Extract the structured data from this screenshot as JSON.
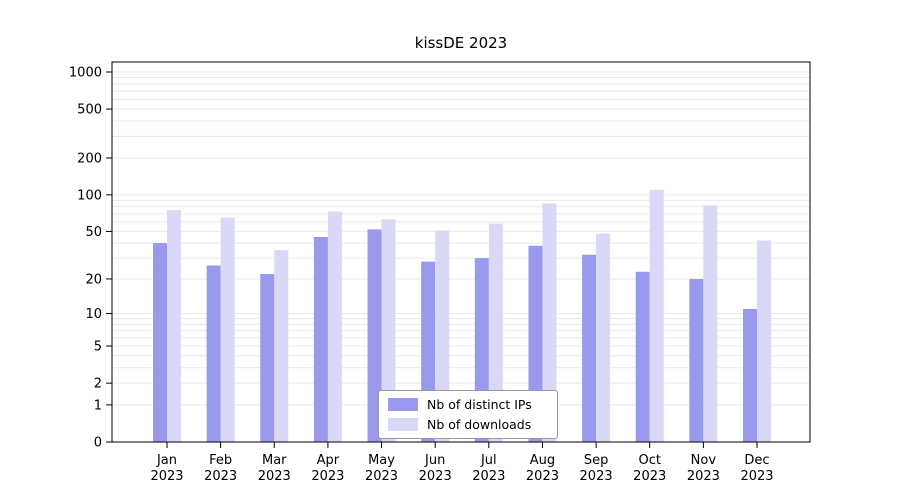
{
  "chart_data": {
    "type": "bar",
    "title": "kissDE 2023",
    "categories": [
      "Jan",
      "Feb",
      "Mar",
      "Apr",
      "May",
      "Jun",
      "Jul",
      "Aug",
      "Sep",
      "Oct",
      "Nov",
      "Dec"
    ],
    "year_label": "2023",
    "series": [
      {
        "name": "Nb of distinct IPs",
        "color": "#9999ee",
        "values": [
          40,
          26,
          22,
          45,
          52,
          28,
          30,
          38,
          32,
          23,
          20,
          11
        ]
      },
      {
        "name": "Nb of downloads",
        "color": "#d9d9f7",
        "values": [
          75,
          65,
          35,
          73,
          63,
          51,
          58,
          85,
          48,
          110,
          82,
          42
        ]
      }
    ],
    "y_ticks": [
      0,
      1,
      2,
      5,
      10,
      20,
      50,
      100,
      200,
      500,
      1000
    ],
    "y_scale": "log1p",
    "ylim": [
      0,
      1000
    ],
    "grid": true,
    "grid_color": "#e9e9e9",
    "frame_color": "#000000",
    "legend_position": "bottom-center"
  }
}
